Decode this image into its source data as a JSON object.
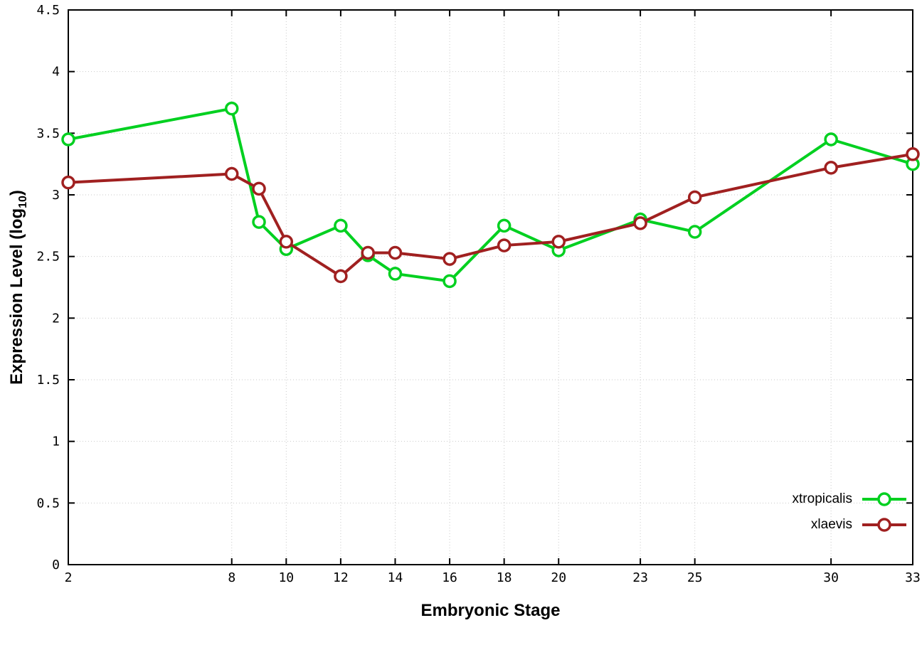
{
  "figure": {
    "xlabel": "Embryonic Stage",
    "ylabel_main": "Expression Level (log",
    "ylabel_sub": "10",
    "ylabel_close": ")"
  },
  "chart_data": {
    "type": "line",
    "title": "",
    "xlabel": "Embryonic Stage",
    "ylabel": "Expression Level (log10)",
    "xlim": [
      2,
      33
    ],
    "ylim": [
      0,
      4.5
    ],
    "xticks": [
      2,
      8,
      10,
      12,
      14,
      16,
      18,
      20,
      23,
      25,
      30,
      33
    ],
    "yticks": [
      0,
      0.5,
      1,
      1.5,
      2,
      2.5,
      3,
      3.5,
      4,
      4.5
    ],
    "grid": true,
    "legend_position": "bottom-right",
    "x": [
      2,
      8,
      9,
      10,
      12,
      13,
      14,
      16,
      18,
      20,
      23,
      25,
      30,
      33
    ],
    "series": [
      {
        "name": "xtropicalis",
        "color": "#00d020",
        "values": [
          3.45,
          3.7,
          2.78,
          2.56,
          2.75,
          2.51,
          2.36,
          2.3,
          2.75,
          2.55,
          2.8,
          2.7,
          3.45,
          3.25
        ]
      },
      {
        "name": "xlaevis",
        "color": "#a02020",
        "values": [
          3.1,
          3.17,
          3.05,
          2.62,
          2.34,
          2.53,
          2.53,
          2.48,
          2.59,
          2.62,
          2.77,
          2.98,
          3.22,
          3.33
        ]
      }
    ]
  }
}
